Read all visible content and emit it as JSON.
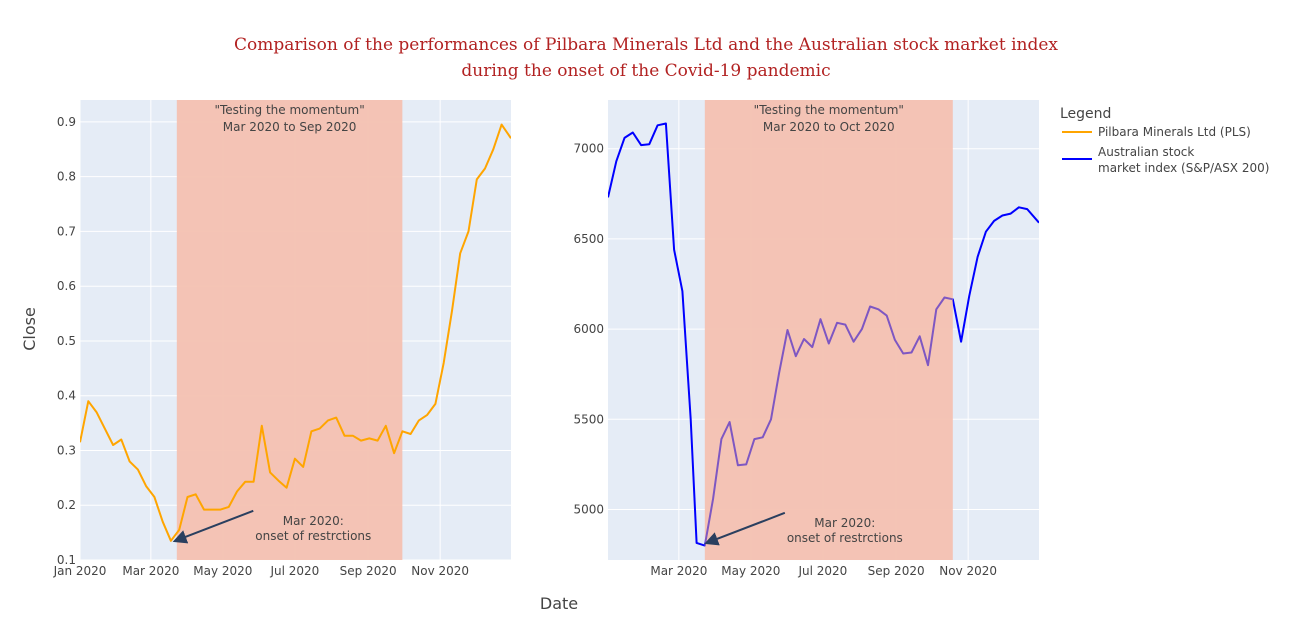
{
  "title_line1": "Comparison of the performances of Pilbara Minerals Ltd and the Australian stock market index",
  "title_line2": "during the onset of the Covid-19 pandemic",
  "x_axis_title": "Date",
  "y_axis_title": "Close",
  "legend": {
    "title": "Legend",
    "items": [
      {
        "line1": "Pilbara Minerals Ltd (PLS)",
        "line2": "",
        "color": "#ffa500"
      },
      {
        "line1": "Australian stock",
        "line2": "market index (S&P/ASX 200)",
        "color": "#0000ff"
      }
    ]
  },
  "colors": {
    "plot_bg": "#e5ecf6",
    "shade": "#f4c1b1",
    "overlay_line": "#7e57c2",
    "arrow": "#2a3f5f"
  },
  "chart_data": [
    {
      "type": "line",
      "x_ticks": [
        "Jan 2020",
        "Mar 2020",
        "May 2020",
        "Jul 2020",
        "Sep 2020",
        "Nov 2020"
      ],
      "x_tick_dates": [
        "2020-01-01",
        "2020-03-01",
        "2020-05-01",
        "2020-07-01",
        "2020-09-01",
        "2020-11-01"
      ],
      "y_ticks": [
        0.1,
        0.2,
        0.3,
        0.4,
        0.5,
        0.6,
        0.7,
        0.8,
        0.9
      ],
      "y_tick_labels": [
        "0.1",
        "0.2",
        "0.3",
        "0.4",
        "0.5",
        "0.6",
        "0.7",
        "0.8",
        "0.9"
      ],
      "xlim": [
        "2020-01-01",
        "2020-12-31"
      ],
      "ylim": [
        0.1,
        0.94
      ],
      "shaded_region": {
        "start": "2020-03-23",
        "end": "2020-09-30"
      },
      "region_label_line1": "\"Testing the momentum\"",
      "region_label_line2": "Mar 2020 to Sep 2020",
      "arrow_label_line1": "Mar 2020:",
      "arrow_label_line2": "onset of restrctions",
      "arrow_target": {
        "x": "2020-03-20",
        "y": 0.135
      },
      "series": [
        {
          "color": "#ffa500",
          "x": [
            "2020-01-01",
            "2020-01-08",
            "2020-01-15",
            "2020-01-22",
            "2020-01-29",
            "2020-02-05",
            "2020-02-12",
            "2020-02-19",
            "2020-02-26",
            "2020-03-04",
            "2020-03-11",
            "2020-03-18",
            "2020-03-25",
            "2020-04-01",
            "2020-04-08",
            "2020-04-15",
            "2020-04-22",
            "2020-04-29",
            "2020-05-06",
            "2020-05-13",
            "2020-05-20",
            "2020-05-27",
            "2020-06-03",
            "2020-06-10",
            "2020-06-17",
            "2020-06-24",
            "2020-07-01",
            "2020-07-08",
            "2020-07-15",
            "2020-07-22",
            "2020-07-29",
            "2020-08-05",
            "2020-08-12",
            "2020-08-19",
            "2020-08-26",
            "2020-09-02",
            "2020-09-09",
            "2020-09-16",
            "2020-09-23",
            "2020-09-30",
            "2020-10-07",
            "2020-10-14",
            "2020-10-21",
            "2020-10-28",
            "2020-11-04",
            "2020-11-11",
            "2020-11-18",
            "2020-11-25",
            "2020-12-02",
            "2020-12-09",
            "2020-12-16",
            "2020-12-23",
            "2020-12-31"
          ],
          "y": [
            0.315,
            0.39,
            0.37,
            0.34,
            0.31,
            0.32,
            0.28,
            0.265,
            0.235,
            0.215,
            0.17,
            0.135,
            0.155,
            0.215,
            0.22,
            0.192,
            0.192,
            0.192,
            0.197,
            0.225,
            0.243,
            0.243,
            0.345,
            0.26,
            0.245,
            0.232,
            0.285,
            0.27,
            0.335,
            0.34,
            0.355,
            0.36,
            0.327,
            0.327,
            0.318,
            0.322,
            0.318,
            0.345,
            0.295,
            0.335,
            0.33,
            0.355,
            0.365,
            0.385,
            0.46,
            0.555,
            0.66,
            0.7,
            0.795,
            0.815,
            0.85,
            0.895,
            0.87
          ]
        }
      ]
    },
    {
      "type": "line",
      "x_ticks": [
        "Mar 2020",
        "May 2020",
        "Jul 2020",
        "Sep 2020",
        "Nov 2020"
      ],
      "x_tick_dates": [
        "2020-03-01",
        "2020-05-01",
        "2020-07-01",
        "2020-09-01",
        "2020-11-01"
      ],
      "y_ticks": [
        5000,
        5500,
        6000,
        6500,
        7000
      ],
      "y_tick_labels": [
        "5000",
        "5500",
        "6000",
        "6500",
        "7000"
      ],
      "xlim": [
        "2020-01-01",
        "2020-12-31"
      ],
      "ylim": [
        4720,
        7270
      ],
      "shaded_region": {
        "start": "2020-03-23",
        "end": "2020-10-19"
      },
      "region_label_line1": "\"Testing the momentum\"",
      "region_label_line2": "Mar 2020 to Oct 2020",
      "arrow_label_line1": "Mar 2020:",
      "arrow_label_line2": "onset of restrctions",
      "arrow_target": {
        "x": "2020-03-23",
        "y": 4815
      },
      "series": [
        {
          "color": "#0000ff",
          "x": [
            "2020-01-01",
            "2020-01-08",
            "2020-01-15",
            "2020-01-22",
            "2020-01-29",
            "2020-02-05",
            "2020-02-12",
            "2020-02-19",
            "2020-02-26",
            "2020-03-04",
            "2020-03-11",
            "2020-03-16",
            "2020-03-23",
            "2020-03-30",
            "2020-04-06",
            "2020-04-13",
            "2020-04-20",
            "2020-04-27",
            "2020-05-04",
            "2020-05-11",
            "2020-05-18",
            "2020-05-25",
            "2020-06-01",
            "2020-06-08",
            "2020-06-15",
            "2020-06-22",
            "2020-06-29",
            "2020-07-06",
            "2020-07-13",
            "2020-07-20",
            "2020-07-27",
            "2020-08-03",
            "2020-08-10",
            "2020-08-17",
            "2020-08-24",
            "2020-08-31",
            "2020-09-07",
            "2020-09-14",
            "2020-09-21",
            "2020-09-28",
            "2020-10-05",
            "2020-10-12",
            "2020-10-19",
            "2020-10-26",
            "2020-11-02",
            "2020-11-09",
            "2020-11-16",
            "2020-11-23",
            "2020-11-30",
            "2020-12-07",
            "2020-12-14",
            "2020-12-21",
            "2020-12-31"
          ],
          "y": [
            6730,
            6930,
            7060,
            7090,
            7020,
            7025,
            7130,
            7140,
            6440,
            6210,
            5500,
            4815,
            4800,
            5060,
            5390,
            5485,
            5245,
            5250,
            5390,
            5400,
            5500,
            5760,
            5995,
            5850,
            5945,
            5900,
            6055,
            5920,
            6035,
            6025,
            5930,
            6000,
            6125,
            6110,
            6075,
            5940,
            5865,
            5870,
            5960,
            5800,
            6110,
            6175,
            6165,
            5930,
            6185,
            6400,
            6540,
            6600,
            6630,
            6640,
            6675,
            6665,
            6590
          ]
        }
      ]
    }
  ]
}
